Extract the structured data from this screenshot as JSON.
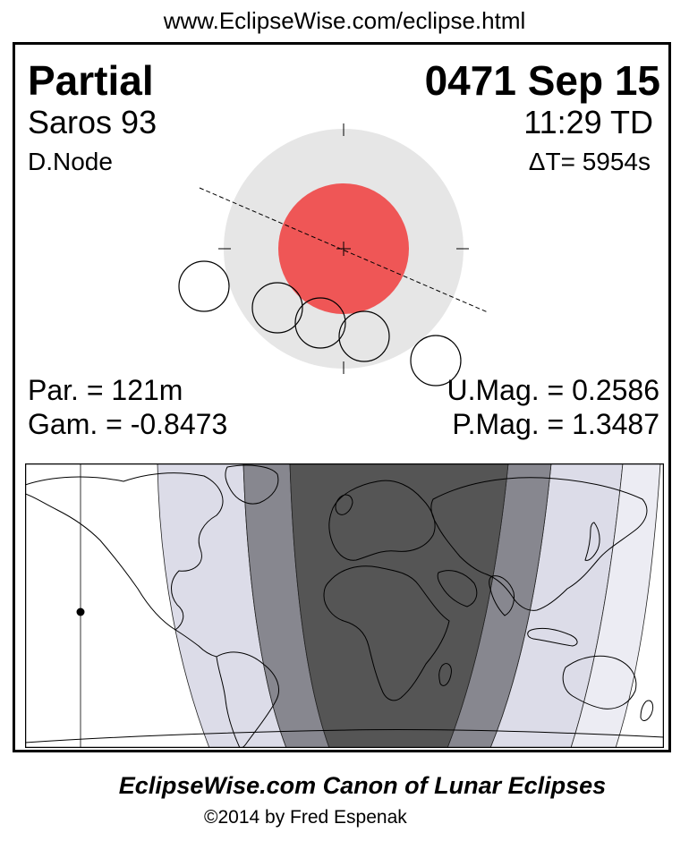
{
  "header": {
    "url": "www.EclipseWise.com/eclipse.html"
  },
  "eclipse": {
    "type": "Partial",
    "date": "0471 Sep 15",
    "saros": "Saros  93",
    "time": "11:29 TD",
    "node": "D.Node",
    "delta_t": "ΔT=   5954s",
    "par_duration": "Par. = 121m",
    "gamma": "Gam. = -0.8473",
    "umbral_magnitude": "U.Mag. = 0.2586",
    "penumbral_magnitude": "P.Mag. = 1.3487"
  },
  "colors": {
    "penumbra": "#e6e6e6",
    "umbra": "#ef5656",
    "map_night_umbral": "#555555",
    "map_partial": "#87878f",
    "map_penumbral": "#dcdce8",
    "map_penumbral_light": "#ececf3"
  },
  "footer": {
    "title": "EclipseWise.com Canon of Lunar Eclipses",
    "copyright": "©2014 by Fred Espenak"
  }
}
